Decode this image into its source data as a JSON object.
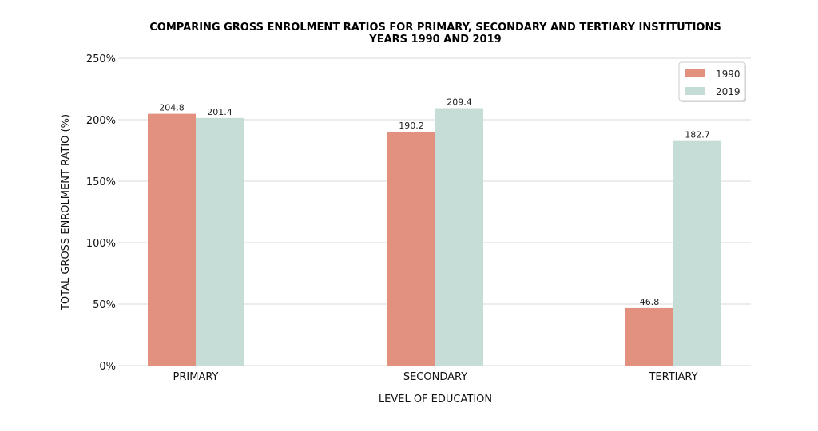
{
  "chart_data": {
    "type": "bar",
    "title": "COMPARING GROSS ENROLMENT RATIOS FOR PRIMARY, SECONDARY AND TERTIARY INSTITUTIONS",
    "subtitle": "YEARS 1990 AND 2019",
    "xlabel": "LEVEL OF EDUCATION",
    "ylabel": "TOTAL GROSS ENROLMENT RATIO (%)",
    "categories": [
      "PRIMARY",
      "SECONDARY",
      "TERTIARY"
    ],
    "series": [
      {
        "name": "1990",
        "values": [
          204.8,
          190.2,
          46.8
        ],
        "color": "#e1917e"
      },
      {
        "name": "2019",
        "values": [
          201.4,
          209.4,
          182.7
        ],
        "color": "#c6ddd7"
      }
    ],
    "ylim": [
      0,
      250
    ],
    "yticks": [
      0,
      50,
      100,
      150,
      200,
      250
    ],
    "ytick_labels": [
      "0%",
      "50%",
      "100%",
      "150%",
      "200%",
      "250%"
    ],
    "grid": true,
    "legend_position": "top-right"
  }
}
